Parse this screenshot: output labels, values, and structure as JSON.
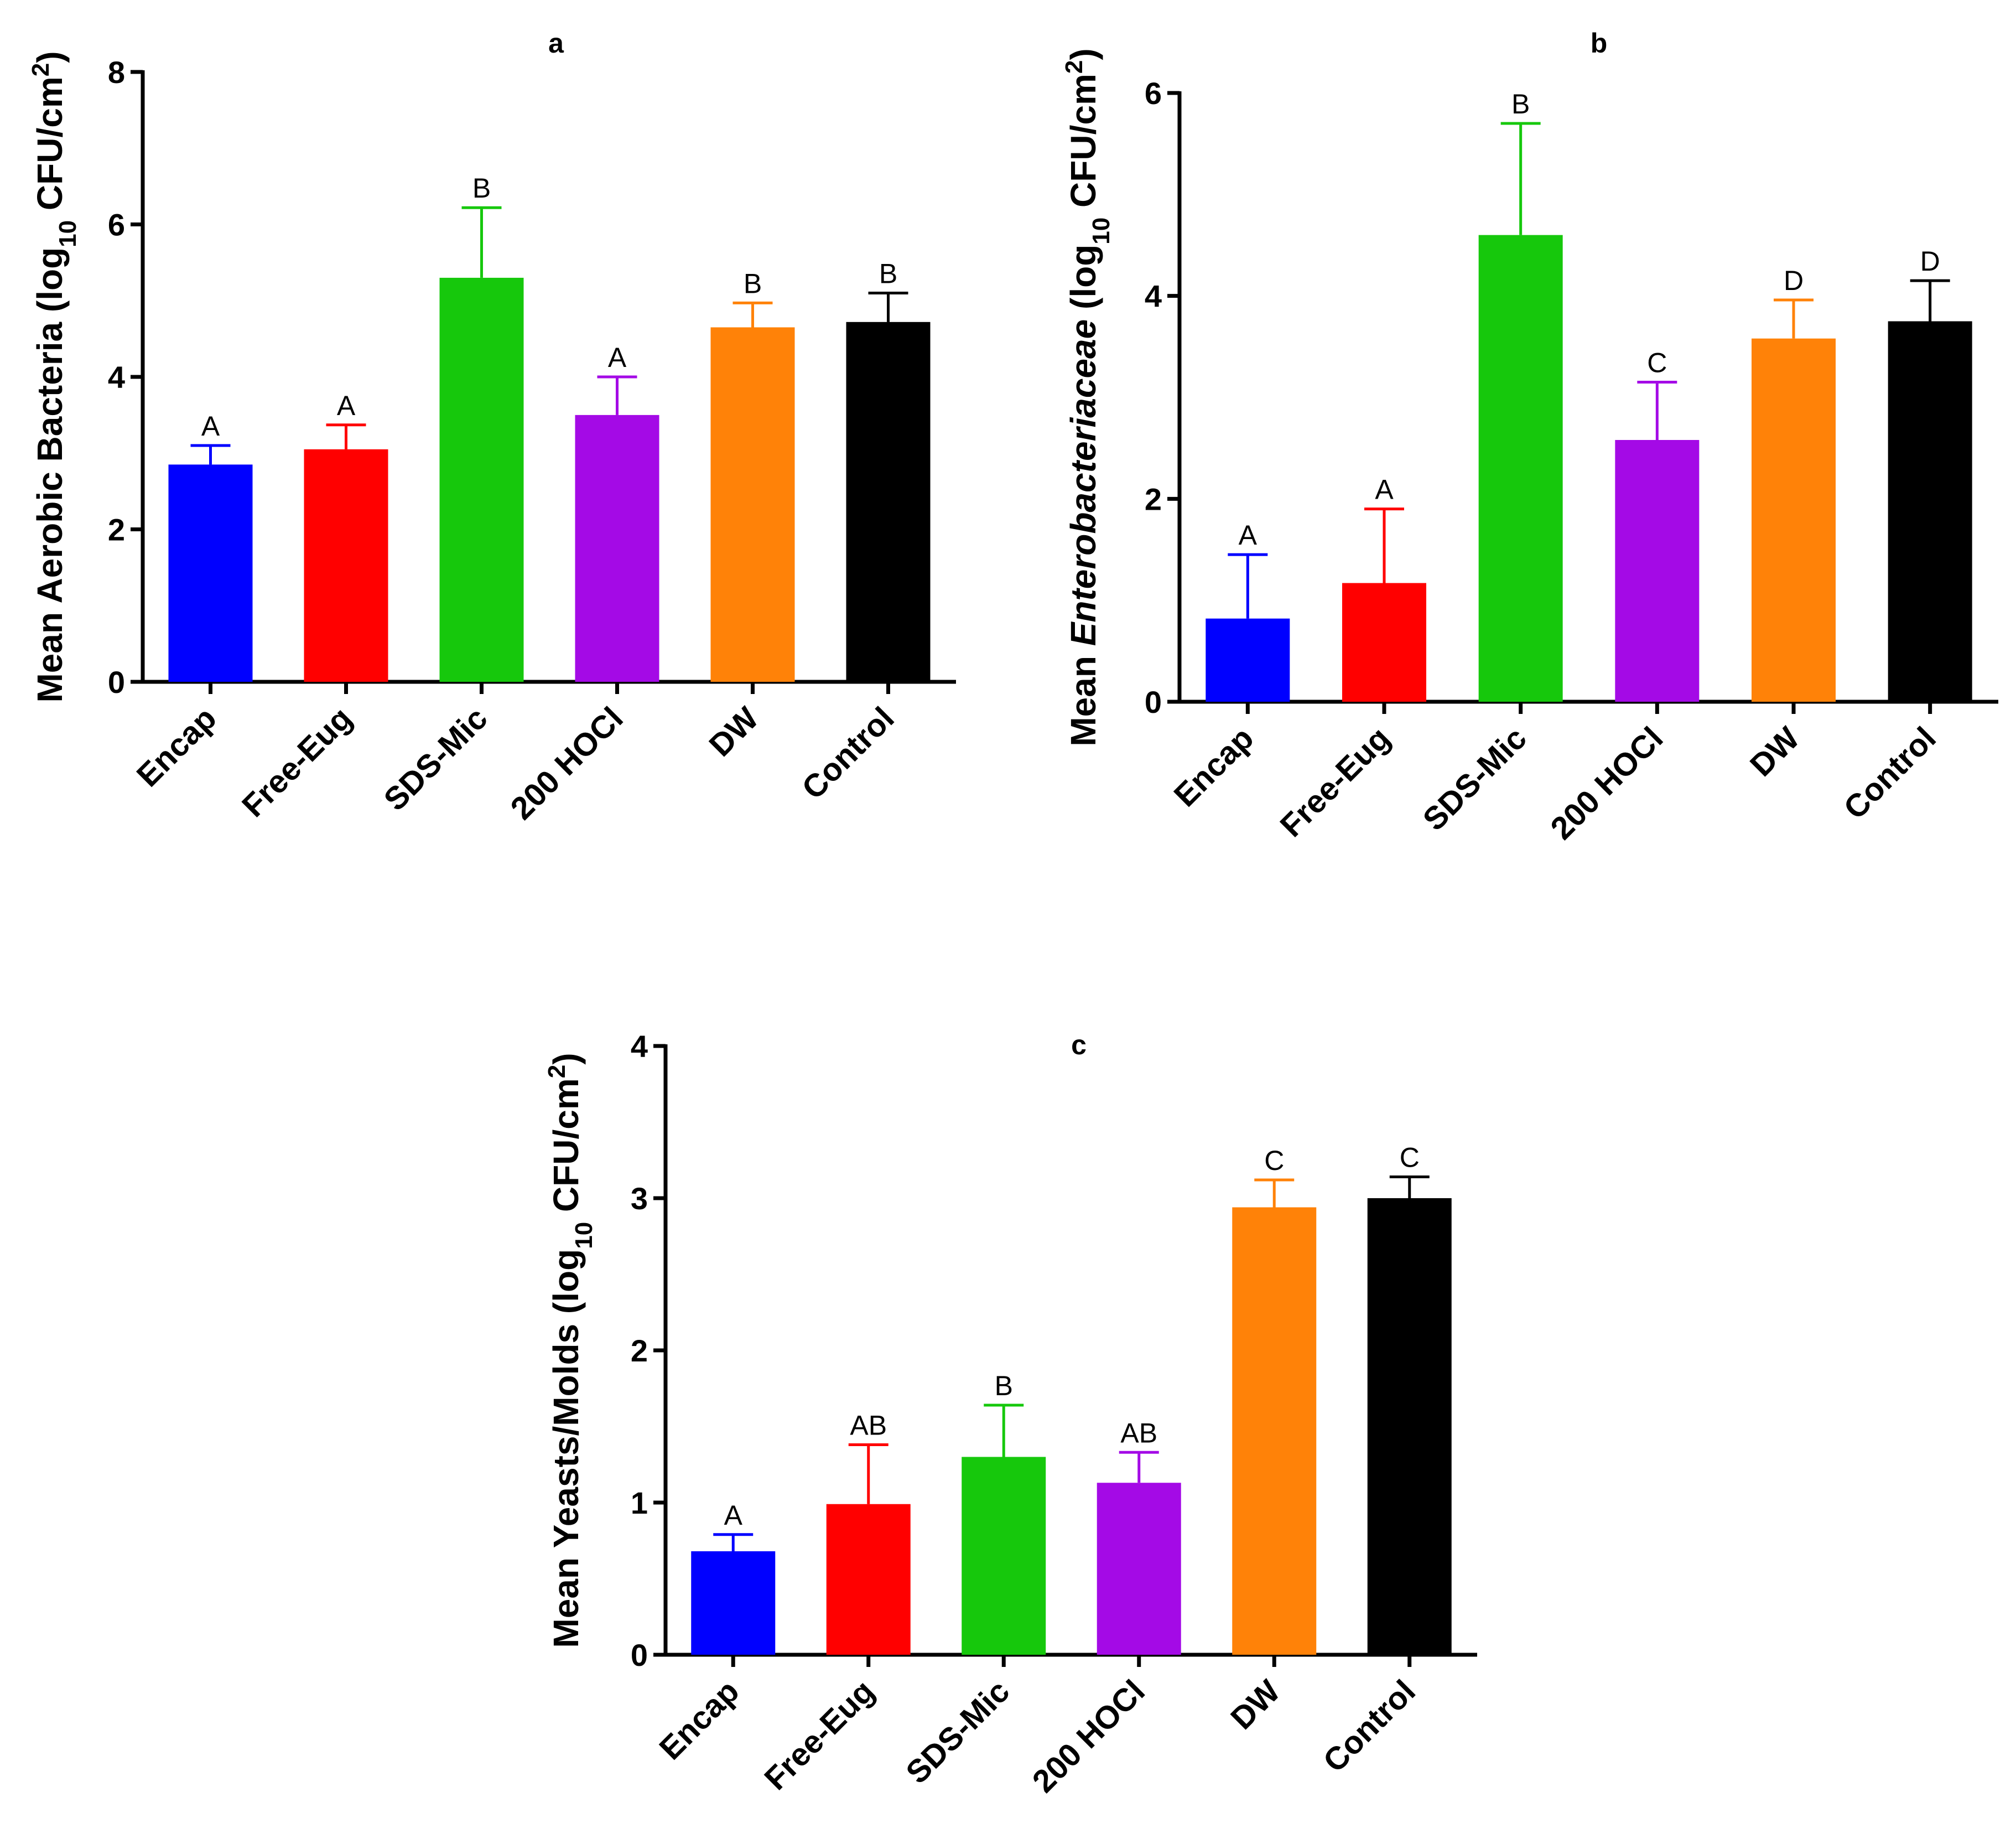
{
  "chart_data": [
    {
      "type": "bar",
      "title": "a",
      "ylabel": {
        "pre": "Mean Aerobic Bacteria (log",
        "sub": "10",
        "mid": " CFU/cm",
        "sup": "2",
        "post": ")"
      },
      "xlabel": "",
      "categories": [
        "Encap",
        "Free-Eug",
        "SDS-Mic",
        "200 HOCl",
        "DW",
        "Control"
      ],
      "values": [
        2.85,
        3.05,
        5.3,
        3.5,
        4.65,
        4.72
      ],
      "errors": [
        0.25,
        0.32,
        0.92,
        0.5,
        0.32,
        0.38
      ],
      "significance": [
        "A",
        "A",
        "B",
        "A",
        "B",
        "B"
      ],
      "colors": [
        "#0000ff",
        "#ff0000",
        "#16c80c",
        "#a40ae6",
        "#ff8208",
        "#000000"
      ],
      "ylim": [
        0,
        8
      ],
      "yticks": [
        0,
        2,
        4,
        6,
        8
      ],
      "grid": false
    },
    {
      "type": "bar",
      "title": "b",
      "ylabel": {
        "pre": "Mean ",
        "ital": "Enterobacteriaceae",
        "pre2": " (log",
        "sub": "10",
        "mid": " CFU/cm",
        "sup": "2",
        "post": ")"
      },
      "xlabel": "",
      "categories": [
        "Encap",
        "Free-Eug",
        "SDS-Mic",
        "200 HOCl",
        "DW",
        "Control"
      ],
      "values": [
        0.82,
        1.17,
        4.6,
        2.58,
        3.58,
        3.75
      ],
      "errors": [
        0.63,
        0.73,
        1.1,
        0.57,
        0.38,
        0.4
      ],
      "significance": [
        "A",
        "A",
        "B",
        "C",
        "D",
        "D"
      ],
      "colors": [
        "#0000ff",
        "#ff0000",
        "#16c80c",
        "#a40ae6",
        "#ff8208",
        "#000000"
      ],
      "ylim": [
        0,
        6
      ],
      "yticks": [
        0,
        2,
        4,
        6
      ],
      "grid": false
    },
    {
      "type": "bar",
      "title": "c",
      "ylabel": {
        "pre": "Mean Yeasts/Molds (log",
        "sub": "10",
        "mid": " CFU/cm",
        "sup": "2",
        "post": ")"
      },
      "xlabel": "",
      "categories": [
        "Encap",
        "Free-Eug",
        "SDS-Mic",
        "200 HOCl",
        "DW",
        "Control"
      ],
      "values": [
        0.68,
        0.99,
        1.3,
        1.13,
        2.94,
        3.0
      ],
      "errors": [
        0.11,
        0.39,
        0.34,
        0.2,
        0.18,
        0.14
      ],
      "significance": [
        "A",
        "AB",
        "B",
        "AB",
        "C",
        "C"
      ],
      "colors": [
        "#0000ff",
        "#ff0000",
        "#16c80c",
        "#a40ae6",
        "#ff8208",
        "#000000"
      ],
      "ylim": [
        0,
        4
      ],
      "yticks": [
        0,
        1,
        2,
        3,
        4
      ],
      "grid": false
    }
  ]
}
